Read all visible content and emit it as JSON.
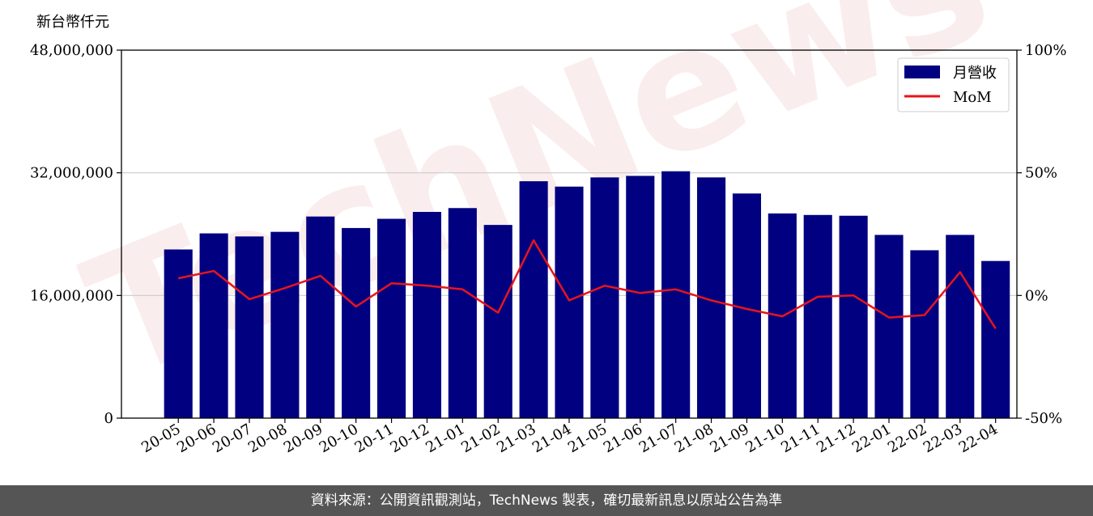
{
  "chart_data": {
    "type": "bar",
    "ylabel": "新台幣仟元",
    "categories": [
      "20-05",
      "20-06",
      "20-07",
      "20-08",
      "20-09",
      "20-10",
      "20-11",
      "20-12",
      "21-01",
      "21-02",
      "21-03",
      "21-04",
      "21-05",
      "21-06",
      "21-07",
      "21-08",
      "21-09",
      "21-10",
      "21-11",
      "21-12",
      "22-01",
      "22-02",
      "22-03",
      "22-04"
    ],
    "ylim": [
      0,
      48000000
    ],
    "yticks": [
      "0",
      "16,000,000",
      "32,000,000",
      "48,000,000"
    ],
    "y2lim": [
      -50,
      100
    ],
    "y2ticks": [
      "-50%",
      "0%",
      "50%",
      "100%"
    ],
    "grid": true,
    "legend_position": "top-right",
    "series": [
      {
        "name": "月營收",
        "type": "bar",
        "color": "#000080",
        "values": [
          22000000,
          24100000,
          23700000,
          24300000,
          26300000,
          24800000,
          26000000,
          26900000,
          27400000,
          25200000,
          30900000,
          30200000,
          31400000,
          31600000,
          32200000,
          31400000,
          29300000,
          26700000,
          26500000,
          26400000,
          23900000,
          21900000,
          23900000,
          20500000
        ]
      },
      {
        "name": "MoM",
        "type": "line",
        "axis": "right",
        "color": "#e8141c",
        "values": [
          7,
          10,
          -1.5,
          3,
          8,
          -4.5,
          5,
          4,
          2.5,
          -7,
          22.5,
          -2,
          4,
          1,
          2.5,
          -2,
          -5.5,
          -8.5,
          -0.5,
          0,
          -9,
          -8,
          9.5,
          -13.5
        ]
      }
    ]
  },
  "watermark": "TechNews",
  "footer": {
    "text": "資料來源：公開資訊觀測站，TechNews 製表，確切最新訊息以原站公告為準"
  }
}
